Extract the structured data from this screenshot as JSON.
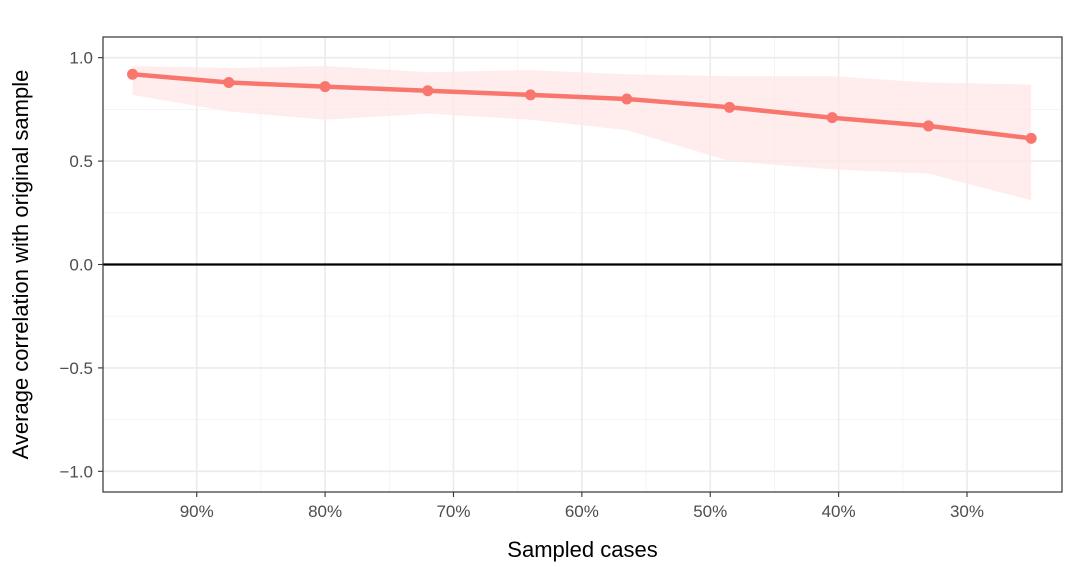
{
  "chart_data": {
    "type": "line",
    "xlabel": "Sampled cases",
    "ylabel": "Average correlation with original sample",
    "xlim": [
      97.3,
      22.6
    ],
    "ylim": [
      -1.1,
      1.1
    ],
    "x_ticks": [
      90,
      80,
      70,
      60,
      50,
      40,
      30
    ],
    "x_tick_labels": [
      "90%",
      "80%",
      "70%",
      "60%",
      "50%",
      "40%",
      "30%"
    ],
    "y_ticks": [
      -1.0,
      -0.5,
      0.0,
      0.5,
      1.0
    ],
    "y_tick_labels": [
      "−1.0",
      "−0.5",
      "0.0",
      "0.5",
      "1.0"
    ],
    "grid": true,
    "reference_line_y": 0,
    "series": [
      {
        "x": [
          95,
          87.5,
          80,
          72,
          64,
          56.5,
          48.5,
          40.5,
          33,
          25
        ],
        "y": [
          0.92,
          0.88,
          0.86,
          0.84,
          0.82,
          0.8,
          0.76,
          0.71,
          0.67,
          0.61
        ],
        "upper": [
          0.96,
          0.95,
          0.96,
          0.93,
          0.94,
          0.92,
          0.91,
          0.91,
          0.88,
          0.87
        ],
        "lower": [
          0.82,
          0.74,
          0.7,
          0.73,
          0.7,
          0.65,
          0.5,
          0.46,
          0.44,
          0.31
        ],
        "color": "#f8766d",
        "ribbon_color": "#fde7e5"
      }
    ]
  }
}
